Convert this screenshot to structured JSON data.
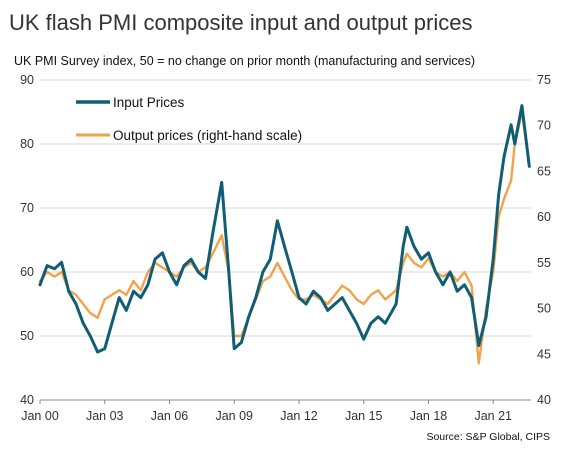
{
  "chart_data": {
    "type": "line",
    "title": "UK flash PMI composite input and output prices",
    "subtitle": "UK PMI Survey index, 50 = no change on prior month (manufacturing and services)",
    "source": "Source: S&P Global, CIPS",
    "x_ticks": [
      "Jan 00",
      "Jan 03",
      "Jan 06",
      "Jan 09",
      "Jan 12",
      "Jan 15",
      "Jan 18",
      "Jan 21"
    ],
    "xlim": [
      2000,
      2022.75
    ],
    "y_left": {
      "ylim": [
        40,
        90
      ],
      "ticks": [
        40,
        50,
        60,
        70,
        80,
        90
      ]
    },
    "y_right": {
      "ylim": [
        40,
        75
      ],
      "ticks": [
        40,
        45,
        50,
        55,
        60,
        65,
        70,
        75
      ]
    },
    "grid": true,
    "legend_position": "top-left",
    "series": [
      {
        "name": "Input Prices",
        "axis": "left",
        "color": "#0f5e73",
        "points": [
          [
            2000.0,
            58
          ],
          [
            2000.33,
            61
          ],
          [
            2000.67,
            60.5
          ],
          [
            2001.0,
            61.5
          ],
          [
            2001.33,
            57
          ],
          [
            2001.67,
            55
          ],
          [
            2002.0,
            52
          ],
          [
            2002.33,
            50
          ],
          [
            2002.67,
            47.5
          ],
          [
            2003.0,
            48
          ],
          [
            2003.33,
            52
          ],
          [
            2003.67,
            56
          ],
          [
            2004.0,
            54
          ],
          [
            2004.33,
            57
          ],
          [
            2004.67,
            56
          ],
          [
            2005.0,
            58
          ],
          [
            2005.33,
            62
          ],
          [
            2005.67,
            63
          ],
          [
            2006.0,
            60
          ],
          [
            2006.33,
            58
          ],
          [
            2006.67,
            61
          ],
          [
            2007.0,
            62
          ],
          [
            2007.33,
            60
          ],
          [
            2007.67,
            59
          ],
          [
            2008.0,
            66
          ],
          [
            2008.42,
            74
          ],
          [
            2008.75,
            60
          ],
          [
            2009.0,
            48
          ],
          [
            2009.33,
            49
          ],
          [
            2009.67,
            53
          ],
          [
            2010.0,
            56
          ],
          [
            2010.33,
            60
          ],
          [
            2010.67,
            62
          ],
          [
            2011.0,
            68
          ],
          [
            2011.33,
            64
          ],
          [
            2011.67,
            60
          ],
          [
            2012.0,
            56
          ],
          [
            2012.33,
            55
          ],
          [
            2012.67,
            57
          ],
          [
            2013.0,
            56
          ],
          [
            2013.33,
            54
          ],
          [
            2013.67,
            55
          ],
          [
            2014.0,
            56
          ],
          [
            2014.33,
            54
          ],
          [
            2014.67,
            52
          ],
          [
            2015.0,
            49.5
          ],
          [
            2015.33,
            52
          ],
          [
            2015.67,
            53
          ],
          [
            2016.0,
            52
          ],
          [
            2016.5,
            55
          ],
          [
            2016.83,
            64
          ],
          [
            2017.0,
            67
          ],
          [
            2017.33,
            64
          ],
          [
            2017.67,
            62
          ],
          [
            2018.0,
            63
          ],
          [
            2018.33,
            60
          ],
          [
            2018.67,
            58
          ],
          [
            2019.0,
            60
          ],
          [
            2019.33,
            57
          ],
          [
            2019.67,
            58
          ],
          [
            2020.0,
            56
          ],
          [
            2020.33,
            48.5
          ],
          [
            2020.67,
            53
          ],
          [
            2021.0,
            62
          ],
          [
            2021.25,
            72
          ],
          [
            2021.5,
            78
          ],
          [
            2021.83,
            83
          ],
          [
            2022.0,
            80
          ],
          [
            2022.33,
            86
          ],
          [
            2022.67,
            76.5
          ]
        ]
      },
      {
        "name": "Output prices (right-hand scale)",
        "axis": "right",
        "color": "#f2a24a",
        "points": [
          [
            2000.0,
            53
          ],
          [
            2000.33,
            54
          ],
          [
            2000.67,
            53.5
          ],
          [
            2001.0,
            54
          ],
          [
            2001.33,
            52
          ],
          [
            2001.67,
            51.5
          ],
          [
            2002.0,
            50.5
          ],
          [
            2002.33,
            49.5
          ],
          [
            2002.67,
            49
          ],
          [
            2003.0,
            51
          ],
          [
            2003.33,
            51.5
          ],
          [
            2003.67,
            52
          ],
          [
            2004.0,
            51.5
          ],
          [
            2004.33,
            53
          ],
          [
            2004.67,
            52
          ],
          [
            2005.0,
            54
          ],
          [
            2005.33,
            55
          ],
          [
            2005.67,
            54.5
          ],
          [
            2006.0,
            54
          ],
          [
            2006.33,
            53.5
          ],
          [
            2006.67,
            54.5
          ],
          [
            2007.0,
            55
          ],
          [
            2007.33,
            54
          ],
          [
            2007.67,
            54.5
          ],
          [
            2008.0,
            56
          ],
          [
            2008.42,
            58
          ],
          [
            2008.75,
            54
          ],
          [
            2009.0,
            47
          ],
          [
            2009.33,
            47
          ],
          [
            2009.67,
            49
          ],
          [
            2010.0,
            51
          ],
          [
            2010.33,
            53
          ],
          [
            2010.67,
            53.5
          ],
          [
            2011.0,
            55
          ],
          [
            2011.33,
            53.5
          ],
          [
            2011.67,
            52
          ],
          [
            2012.0,
            51
          ],
          [
            2012.33,
            51
          ],
          [
            2012.67,
            51.5
          ],
          [
            2013.0,
            51
          ],
          [
            2013.33,
            50.5
          ],
          [
            2013.67,
            51.5
          ],
          [
            2014.0,
            52.5
          ],
          [
            2014.33,
            52
          ],
          [
            2014.67,
            51
          ],
          [
            2015.0,
            50.5
          ],
          [
            2015.33,
            51.5
          ],
          [
            2015.67,
            52
          ],
          [
            2016.0,
            51
          ],
          [
            2016.5,
            52
          ],
          [
            2016.83,
            55
          ],
          [
            2017.0,
            56
          ],
          [
            2017.33,
            55
          ],
          [
            2017.67,
            54.5
          ],
          [
            2018.0,
            55.5
          ],
          [
            2018.33,
            54
          ],
          [
            2018.67,
            53.5
          ],
          [
            2019.0,
            54
          ],
          [
            2019.33,
            53
          ],
          [
            2019.67,
            54
          ],
          [
            2020.0,
            52.5
          ],
          [
            2020.33,
            44
          ],
          [
            2020.67,
            50
          ],
          [
            2021.0,
            54
          ],
          [
            2021.25,
            60
          ],
          [
            2021.5,
            62
          ],
          [
            2021.83,
            64
          ],
          [
            2022.0,
            68
          ],
          [
            2022.33,
            71.5
          ],
          [
            2022.67,
            66
          ]
        ]
      }
    ]
  }
}
